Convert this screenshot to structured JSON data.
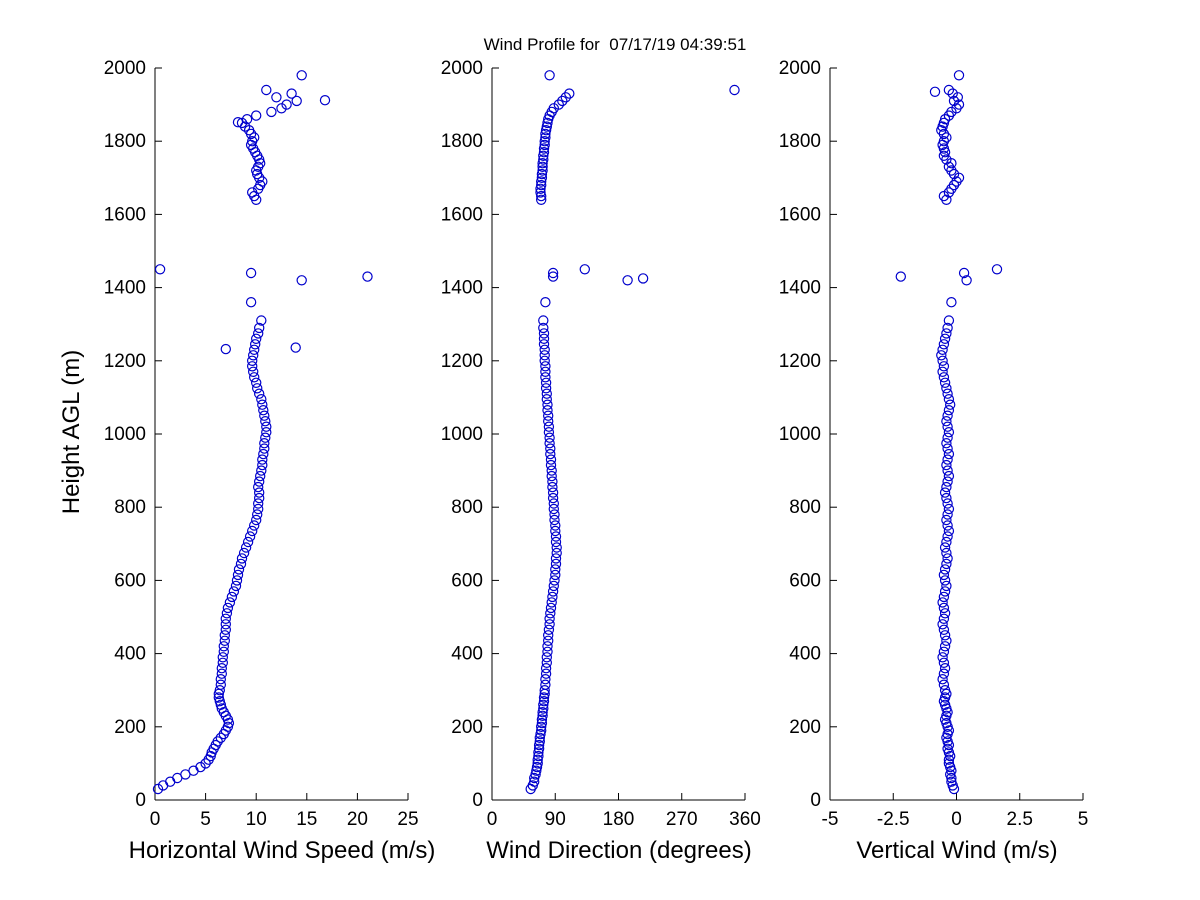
{
  "figure": {
    "title": "Wind Profile for  07/17/19 04:39:51",
    "background_color": "#ffffff",
    "marker_color": "#0000cc",
    "axis_color": "#000000"
  },
  "chart_data": {
    "type": "scatter",
    "title": "Wind Profile for  07/17/19 04:39:51",
    "ylabel": "Height AGL (m)",
    "ylim": [
      0,
      2000
    ],
    "yticks": [
      0,
      200,
      400,
      600,
      800,
      1000,
      1200,
      1400,
      1600,
      1800,
      2000
    ],
    "grid": false,
    "legend": "none",
    "marker": "open-circle",
    "heights_m": [
      30,
      40,
      50,
      60,
      70,
      80,
      90,
      100,
      110,
      120,
      130,
      140,
      150,
      160,
      170,
      180,
      190,
      200,
      210,
      220,
      230,
      240,
      250,
      260,
      270,
      280,
      290,
      300,
      315,
      330,
      345,
      360,
      375,
      390,
      405,
      420,
      435,
      450,
      465,
      480,
      495,
      510,
      525,
      540,
      555,
      570,
      585,
      600,
      615,
      630,
      645,
      660,
      675,
      690,
      705,
      720,
      735,
      750,
      765,
      780,
      795,
      810,
      825,
      840,
      855,
      870,
      885,
      900,
      915,
      930,
      945,
      960,
      975,
      990,
      1005,
      1020,
      1035,
      1050,
      1065,
      1080,
      1095,
      1110,
      1125,
      1140,
      1155,
      1170,
      1185,
      1200,
      1215,
      1230,
      1245,
      1260,
      1275,
      1290,
      1310,
      1360,
      1420,
      1430,
      1440,
      1450,
      1640,
      1650,
      1660,
      1670,
      1680,
      1690,
      1700,
      1710,
      1720,
      1730,
      1740,
      1750,
      1760,
      1770,
      1780,
      1790,
      1800,
      1810,
      1820,
      1830,
      1840,
      1850,
      1860,
      1870,
      1880,
      1890,
      1900,
      1910,
      1920,
      1930,
      1940,
      1980
    ],
    "panels": [
      {
        "name": "horizontal-wind-speed",
        "xlabel": "Horizontal Wind Speed (m/s)",
        "xlim": [
          0,
          25
        ],
        "xticks": [
          0,
          5,
          10,
          15,
          20,
          25
        ],
        "values": [
          0.3,
          0.8,
          1.5,
          2.2,
          3,
          3.8,
          4.5,
          5,
          5.3,
          5.5,
          5.6,
          5.8,
          6,
          6.2,
          6.5,
          6.8,
          7,
          7.2,
          7.3,
          7.2,
          7,
          6.8,
          6.6,
          6.5,
          6.4,
          6.3,
          6.3,
          6.4,
          6.5,
          6.5,
          6.6,
          6.6,
          6.7,
          6.7,
          6.8,
          6.8,
          6.9,
          6.9,
          7,
          7,
          7,
          7.1,
          7.2,
          7.4,
          7.6,
          7.8,
          8,
          8.1,
          8.2,
          8.3,
          8.5,
          8.6,
          8.8,
          9,
          9.2,
          9.4,
          9.6,
          9.8,
          10,
          10.1,
          10.2,
          10.2,
          10.3,
          10.3,
          10.2,
          10.3,
          10.4,
          10.5,
          10.6,
          10.6,
          10.7,
          10.8,
          10.8,
          10.9,
          11,
          11,
          10.9,
          10.8,
          10.7,
          10.6,
          10.5,
          10.3,
          10.1,
          10,
          9.8,
          9.7,
          9.6,
          9.6,
          9.7,
          9.8,
          9.9,
          10,
          10.2,
          10.3,
          10.5,
          9.5,
          14.5,
          21,
          9.5,
          0.5,
          10,
          9.8,
          9.6,
          10.2,
          10.4,
          10.6,
          10.3,
          10.1,
          10,
          10.2,
          10.4,
          10.3,
          10.1,
          9.9,
          9.7,
          9.5,
          9.6,
          9.8,
          9.5,
          9.3,
          8.9,
          8.6,
          9.1,
          10,
          11.5,
          12.5,
          13,
          14,
          12,
          13.5,
          11,
          14.5
        ],
        "extra_points": [
          [
            1232,
            7.0
          ],
          [
            1236,
            13.9
          ],
          [
            1852,
            8.2
          ],
          [
            1912,
            16.8
          ]
        ]
      },
      {
        "name": "wind-direction",
        "xlabel": "Wind Direction (degrees)",
        "xlim": [
          0,
          360
        ],
        "xticks": [
          0,
          90,
          180,
          270,
          360
        ],
        "values": [
          55,
          58,
          60,
          60,
          62,
          63,
          64,
          65,
          65,
          66,
          66,
          67,
          67,
          68,
          68,
          69,
          70,
          70,
          71,
          71,
          72,
          72,
          73,
          73,
          74,
          74,
          75,
          75,
          76,
          76,
          77,
          77,
          78,
          78,
          79,
          79,
          80,
          80,
          81,
          82,
          82,
          83,
          84,
          85,
          86,
          87,
          88,
          89,
          90,
          90,
          91,
          91,
          92,
          92,
          91,
          91,
          90,
          90,
          89,
          89,
          88,
          88,
          87,
          87,
          86,
          86,
          85,
          85,
          84,
          84,
          83,
          83,
          82,
          82,
          81,
          81,
          80,
          80,
          79,
          79,
          78,
          78,
          77,
          77,
          76,
          76,
          76,
          75,
          75,
          75,
          74,
          74,
          74,
          73,
          73,
          76,
          193,
          87,
          87,
          132,
          70,
          70,
          69,
          69,
          70,
          70,
          71,
          71,
          72,
          72,
          72,
          73,
          73,
          74,
          74,
          75,
          75,
          76,
          76,
          77,
          78,
          79,
          80,
          82,
          85,
          88,
          95,
          100,
          105,
          110,
          345,
          82
        ],
        "extra_points": [
          [
            1425,
            215
          ]
        ]
      },
      {
        "name": "vertical-wind",
        "xlabel": "Vertical Wind (m/s)",
        "xlim": [
          -5,
          5
        ],
        "xticks": [
          -5,
          -2.5,
          0,
          2.5,
          5
        ],
        "values": [
          -0.1,
          -0.15,
          -0.2,
          -0.2,
          -0.25,
          -0.2,
          -0.25,
          -0.3,
          -0.3,
          -0.25,
          -0.3,
          -0.35,
          -0.3,
          -0.35,
          -0.4,
          -0.35,
          -0.3,
          -0.35,
          -0.4,
          -0.45,
          -0.4,
          -0.35,
          -0.4,
          -0.45,
          -0.5,
          -0.45,
          -0.4,
          -0.45,
          -0.5,
          -0.55,
          -0.5,
          -0.45,
          -0.5,
          -0.55,
          -0.5,
          -0.45,
          -0.4,
          -0.45,
          -0.5,
          -0.55,
          -0.5,
          -0.45,
          -0.5,
          -0.55,
          -0.5,
          -0.45,
          -0.4,
          -0.45,
          -0.5,
          -0.45,
          -0.4,
          -0.35,
          -0.4,
          -0.45,
          -0.4,
          -0.35,
          -0.3,
          -0.35,
          -0.4,
          -0.35,
          -0.3,
          -0.35,
          -0.4,
          -0.45,
          -0.4,
          -0.35,
          -0.3,
          -0.35,
          -0.4,
          -0.35,
          -0.3,
          -0.35,
          -0.4,
          -0.35,
          -0.3,
          -0.35,
          -0.4,
          -0.35,
          -0.3,
          -0.25,
          -0.3,
          -0.35,
          -0.4,
          -0.45,
          -0.5,
          -0.55,
          -0.5,
          -0.55,
          -0.6,
          -0.55,
          -0.5,
          -0.45,
          -0.4,
          -0.35,
          -0.3,
          -0.2,
          0.4,
          -2.2,
          0.3,
          1.6,
          -0.4,
          -0.5,
          -0.3,
          -0.2,
          -0.1,
          0,
          0.1,
          -0.1,
          -0.2,
          -0.3,
          -0.2,
          -0.4,
          -0.5,
          -0.45,
          -0.5,
          -0.55,
          -0.5,
          -0.4,
          -0.5,
          -0.6,
          -0.55,
          -0.5,
          -0.45,
          -0.3,
          -0.2,
          0,
          0.1,
          -0.1,
          0.05,
          -0.15,
          -0.3,
          0.1
        ],
        "extra_points": [
          [
            1935,
            -0.85
          ]
        ]
      }
    ]
  }
}
